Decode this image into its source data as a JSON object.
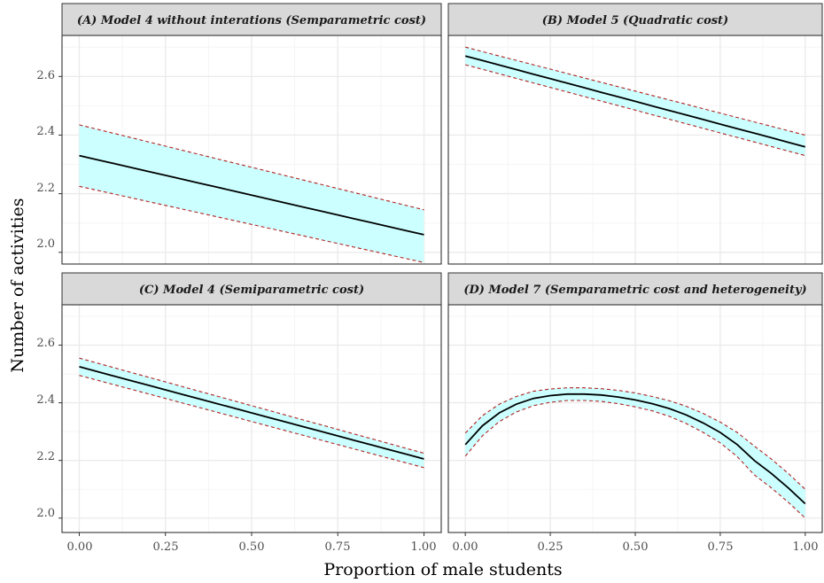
{
  "chart_data": [
    {
      "type": "line",
      "title": "(A) Model 4 without interations (Semparametric cost)",
      "x": [
        0,
        0.05,
        0.1,
        0.15,
        0.2,
        0.25,
        0.3,
        0.35,
        0.4,
        0.45,
        0.5,
        0.55,
        0.6,
        0.65,
        0.7,
        0.75,
        0.8,
        0.85,
        0.9,
        0.95,
        1.0
      ],
      "series": [
        {
          "role": "estimate",
          "values": [
            2.33,
            2.3165,
            2.303,
            2.2895,
            2.276,
            2.2625,
            2.249,
            2.2355,
            2.222,
            2.2085,
            2.195,
            2.1815,
            2.168,
            2.1545,
            2.141,
            2.1275,
            2.114,
            2.1005,
            2.087,
            2.0735,
            2.06
          ]
        },
        {
          "role": "upper",
          "values": [
            2.435,
            2.4205,
            2.406,
            2.3915,
            2.377,
            2.3625,
            2.348,
            2.3335,
            2.319,
            2.3045,
            2.29,
            2.2755,
            2.261,
            2.2465,
            2.232,
            2.2175,
            2.203,
            2.1885,
            2.174,
            2.1595,
            2.145
          ]
        },
        {
          "role": "lower",
          "values": [
            2.225,
            2.212,
            2.199,
            2.186,
            2.173,
            2.16,
            2.147,
            2.134,
            2.121,
            2.108,
            2.095,
            2.082,
            2.069,
            2.056,
            2.043,
            2.03,
            2.017,
            2.004,
            1.991,
            1.978,
            1.965
          ]
        }
      ]
    },
    {
      "type": "line",
      "title": "(B) Model 5 (Quadratic cost)",
      "x": [
        0,
        0.05,
        0.1,
        0.15,
        0.2,
        0.25,
        0.3,
        0.35,
        0.4,
        0.45,
        0.5,
        0.55,
        0.6,
        0.65,
        0.7,
        0.75,
        0.8,
        0.85,
        0.9,
        0.95,
        1.0
      ],
      "series": [
        {
          "role": "estimate",
          "values": [
            2.67,
            2.6545,
            2.639,
            2.6235,
            2.608,
            2.5925,
            2.577,
            2.5615,
            2.546,
            2.5305,
            2.515,
            2.4995,
            2.484,
            2.4685,
            2.453,
            2.4375,
            2.422,
            2.4065,
            2.391,
            2.3755,
            2.36
          ]
        },
        {
          "role": "upper",
          "values": [
            2.7,
            2.685,
            2.67,
            2.655,
            2.64,
            2.625,
            2.61,
            2.595,
            2.58,
            2.565,
            2.55,
            2.535,
            2.52,
            2.505,
            2.49,
            2.475,
            2.46,
            2.445,
            2.43,
            2.415,
            2.4
          ]
        },
        {
          "role": "lower",
          "values": [
            2.64,
            2.6245,
            2.609,
            2.5935,
            2.578,
            2.5625,
            2.547,
            2.5315,
            2.516,
            2.5005,
            2.485,
            2.4695,
            2.454,
            2.4385,
            2.423,
            2.4075,
            2.392,
            2.3765,
            2.361,
            2.3455,
            2.33
          ]
        }
      ]
    },
    {
      "type": "line",
      "title": "(C) Model 4 (Semiparametric cost)",
      "x": [
        0,
        0.05,
        0.1,
        0.15,
        0.2,
        0.25,
        0.3,
        0.35,
        0.4,
        0.45,
        0.5,
        0.55,
        0.6,
        0.65,
        0.7,
        0.75,
        0.8,
        0.85,
        0.9,
        0.95,
        1.0
      ],
      "series": [
        {
          "role": "estimate",
          "values": [
            2.525,
            2.509,
            2.493,
            2.477,
            2.461,
            2.445,
            2.429,
            2.413,
            2.397,
            2.381,
            2.365,
            2.349,
            2.333,
            2.317,
            2.301,
            2.285,
            2.269,
            2.253,
            2.237,
            2.221,
            2.205
          ]
        },
        {
          "role": "upper",
          "values": [
            2.555,
            2.5385,
            2.522,
            2.5055,
            2.489,
            2.4725,
            2.456,
            2.4395,
            2.423,
            2.4065,
            2.39,
            2.3735,
            2.357,
            2.3405,
            2.324,
            2.3075,
            2.291,
            2.2745,
            2.258,
            2.2415,
            2.225
          ]
        },
        {
          "role": "lower",
          "values": [
            2.495,
            2.479,
            2.463,
            2.447,
            2.431,
            2.415,
            2.399,
            2.383,
            2.367,
            2.351,
            2.335,
            2.319,
            2.303,
            2.287,
            2.271,
            2.255,
            2.239,
            2.223,
            2.207,
            2.191,
            2.175
          ]
        }
      ]
    },
    {
      "type": "line",
      "title": "(D) Model 7 (Semparametric cost and heterogeneity)",
      "x": [
        0,
        0.05,
        0.1,
        0.15,
        0.2,
        0.25,
        0.3,
        0.35,
        0.4,
        0.45,
        0.5,
        0.55,
        0.6,
        0.65,
        0.7,
        0.75,
        0.8,
        0.85,
        0.9,
        0.95,
        1.0
      ],
      "series": [
        {
          "role": "estimate",
          "values": [
            2.255,
            2.32,
            2.365,
            2.395,
            2.415,
            2.425,
            2.43,
            2.43,
            2.427,
            2.42,
            2.41,
            2.397,
            2.38,
            2.358,
            2.33,
            2.297,
            2.255,
            2.2,
            2.155,
            2.105,
            2.05
          ]
        },
        {
          "role": "upper",
          "values": [
            2.295,
            2.355,
            2.395,
            2.422,
            2.44,
            2.448,
            2.452,
            2.452,
            2.449,
            2.443,
            2.434,
            2.422,
            2.407,
            2.388,
            2.363,
            2.333,
            2.297,
            2.25,
            2.205,
            2.155,
            2.1
          ]
        },
        {
          "role": "lower",
          "values": [
            2.215,
            2.285,
            2.335,
            2.368,
            2.39,
            2.402,
            2.408,
            2.408,
            2.405,
            2.397,
            2.386,
            2.372,
            2.353,
            2.328,
            2.297,
            2.261,
            2.213,
            2.15,
            2.105,
            2.055,
            2.0
          ]
        }
      ]
    }
  ],
  "axes": {
    "xlabel": "Proportion of male students",
    "ylabel": "Number of activities",
    "x_ticks": [
      "0.00",
      "0.25",
      "0.50",
      "0.75",
      "1.00"
    ],
    "x_tick_values": [
      0,
      0.25,
      0.5,
      0.75,
      1.0
    ],
    "y_ticks_top": [
      "2.0",
      "2.2",
      "2.4",
      "2.6"
    ],
    "y_ticks_bottom": [
      "2.0",
      "2.2",
      "2.4",
      "2.6"
    ],
    "y_tick_values": [
      2.0,
      2.2,
      2.4,
      2.6
    ],
    "xlim": [
      -0.05,
      1.05
    ],
    "ylim_top": [
      1.96,
      2.74
    ],
    "ylim_bottom": [
      1.95,
      2.74
    ]
  },
  "colors": {
    "band": "#ccffff",
    "ci_line": "#b22222",
    "estimate": "#000000",
    "strip": "#d9d9d9",
    "grid_major": "#ebebeb",
    "grid_minor": "#f5f5f5",
    "panel_border": "#333333"
  }
}
